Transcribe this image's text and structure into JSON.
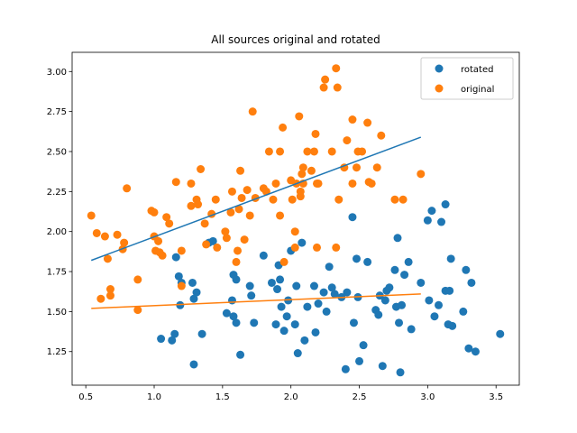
{
  "chart_data": {
    "type": "scatter",
    "title": "All sources original and rotated",
    "xlabel": "",
    "ylabel": "",
    "xlim": [
      0.4,
      3.67
    ],
    "ylim": [
      1.04,
      3.12
    ],
    "xticks": [
      0.5,
      1.0,
      1.5,
      2.0,
      2.5,
      3.0,
      3.5
    ],
    "xtick_labels": [
      "0.5",
      "1.0",
      "1.5",
      "2.0",
      "2.5",
      "3.0",
      "3.5"
    ],
    "yticks": [
      1.25,
      1.5,
      1.75,
      2.0,
      2.25,
      2.5,
      2.75,
      3.0
    ],
    "ytick_labels": [
      "1.25",
      "1.50",
      "1.75",
      "2.00",
      "2.25",
      "2.50",
      "2.75",
      "3.00"
    ],
    "grid": false,
    "legend_position": "top-right",
    "series": [
      {
        "name": "rotated",
        "color": "#1f77b4",
        "points": [
          [
            1.05,
            1.33
          ],
          [
            1.13,
            1.32
          ],
          [
            1.15,
            1.36
          ],
          [
            1.16,
            1.84
          ],
          [
            1.18,
            1.72
          ],
          [
            1.2,
            1.68
          ],
          [
            1.19,
            1.54
          ],
          [
            1.28,
            1.68
          ],
          [
            1.29,
            1.58
          ],
          [
            1.31,
            1.62
          ],
          [
            1.29,
            1.17
          ],
          [
            1.35,
            1.36
          ],
          [
            1.4,
            1.93
          ],
          [
            1.43,
            1.94
          ],
          [
            1.53,
            1.49
          ],
          [
            1.57,
            1.57
          ],
          [
            1.58,
            1.73
          ],
          [
            1.6,
            1.7
          ],
          [
            1.58,
            1.47
          ],
          [
            1.6,
            1.43
          ],
          [
            1.63,
            1.23
          ],
          [
            1.7,
            1.66
          ],
          [
            1.71,
            1.6
          ],
          [
            1.73,
            1.43
          ],
          [
            1.8,
            1.85
          ],
          [
            1.86,
            1.68
          ],
          [
            1.89,
            1.42
          ],
          [
            1.9,
            1.64
          ],
          [
            1.91,
            1.79
          ],
          [
            1.92,
            1.7
          ],
          [
            1.93,
            1.53
          ],
          [
            1.95,
            1.38
          ],
          [
            1.97,
            1.47
          ],
          [
            1.98,
            1.57
          ],
          [
            2.0,
            1.88
          ],
          [
            2.03,
            1.42
          ],
          [
            2.04,
            1.66
          ],
          [
            2.05,
            1.24
          ],
          [
            2.08,
            1.93
          ],
          [
            2.1,
            1.32
          ],
          [
            2.12,
            1.53
          ],
          [
            2.17,
            1.66
          ],
          [
            2.18,
            1.37
          ],
          [
            2.2,
            1.55
          ],
          [
            2.24,
            1.62
          ],
          [
            2.26,
            1.5
          ],
          [
            2.28,
            1.78
          ],
          [
            2.3,
            1.65
          ],
          [
            2.32,
            1.61
          ],
          [
            2.37,
            1.59
          ],
          [
            2.4,
            1.14
          ],
          [
            2.41,
            1.62
          ],
          [
            2.45,
            2.09
          ],
          [
            2.46,
            1.43
          ],
          [
            2.48,
            1.83
          ],
          [
            2.49,
            1.59
          ],
          [
            2.5,
            1.19
          ],
          [
            2.53,
            1.29
          ],
          [
            2.56,
            1.81
          ],
          [
            2.62,
            1.51
          ],
          [
            2.64,
            1.48
          ],
          [
            2.65,
            1.6
          ],
          [
            2.67,
            1.16
          ],
          [
            2.69,
            1.57
          ],
          [
            2.7,
            1.63
          ],
          [
            2.72,
            1.65
          ],
          [
            2.76,
            1.76
          ],
          [
            2.77,
            1.53
          ],
          [
            2.78,
            1.96
          ],
          [
            2.79,
            1.43
          ],
          [
            2.8,
            1.12
          ],
          [
            2.81,
            1.54
          ],
          [
            2.83,
            1.73
          ],
          [
            2.86,
            1.81
          ],
          [
            2.88,
            1.39
          ],
          [
            2.95,
            1.68
          ],
          [
            3.0,
            2.07
          ],
          [
            3.01,
            1.57
          ],
          [
            3.03,
            2.13
          ],
          [
            3.05,
            1.47
          ],
          [
            3.08,
            1.54
          ],
          [
            3.1,
            2.06
          ],
          [
            3.13,
            2.17
          ],
          [
            3.13,
            1.63
          ],
          [
            3.15,
            1.42
          ],
          [
            3.16,
            1.63
          ],
          [
            3.17,
            1.83
          ],
          [
            3.18,
            1.41
          ],
          [
            3.26,
            1.5
          ],
          [
            3.28,
            1.76
          ],
          [
            3.3,
            1.27
          ],
          [
            3.32,
            1.68
          ],
          [
            3.35,
            1.25
          ],
          [
            3.53,
            1.36
          ]
        ],
        "fit_line": [
          [
            0.54,
            1.82
          ],
          [
            2.95,
            2.59
          ]
        ]
      },
      {
        "name": "original",
        "color": "#ff7f0e",
        "points": [
          [
            0.54,
            2.1
          ],
          [
            0.58,
            1.99
          ],
          [
            0.61,
            1.58
          ],
          [
            0.64,
            1.97
          ],
          [
            0.66,
            1.83
          ],
          [
            0.68,
            1.64
          ],
          [
            0.68,
            1.6
          ],
          [
            0.73,
            1.98
          ],
          [
            0.77,
            1.89
          ],
          [
            0.78,
            1.93
          ],
          [
            0.8,
            2.27
          ],
          [
            0.88,
            1.7
          ],
          [
            0.88,
            1.51
          ],
          [
            0.98,
            2.13
          ],
          [
            1.0,
            2.12
          ],
          [
            1.0,
            1.97
          ],
          [
            1.01,
            1.88
          ],
          [
            1.03,
            1.94
          ],
          [
            1.04,
            1.87
          ],
          [
            1.06,
            1.85
          ],
          [
            1.09,
            2.09
          ],
          [
            1.11,
            2.05
          ],
          [
            1.16,
            2.31
          ],
          [
            1.2,
            1.88
          ],
          [
            1.2,
            1.66
          ],
          [
            1.27,
            2.16
          ],
          [
            1.27,
            2.3
          ],
          [
            1.31,
            2.2
          ],
          [
            1.32,
            2.17
          ],
          [
            1.34,
            2.39
          ],
          [
            1.37,
            2.05
          ],
          [
            1.38,
            1.92
          ],
          [
            1.42,
            2.11
          ],
          [
            1.45,
            2.2
          ],
          [
            1.46,
            1.9
          ],
          [
            1.52,
            2.0
          ],
          [
            1.53,
            1.96
          ],
          [
            1.56,
            2.12
          ],
          [
            1.57,
            2.25
          ],
          [
            1.6,
            1.81
          ],
          [
            1.61,
            1.88
          ],
          [
            1.62,
            2.14
          ],
          [
            1.63,
            2.38
          ],
          [
            1.64,
            2.21
          ],
          [
            1.66,
            1.95
          ],
          [
            1.68,
            2.26
          ],
          [
            1.7,
            2.1
          ],
          [
            1.72,
            2.75
          ],
          [
            1.74,
            2.21
          ],
          [
            1.8,
            2.27
          ],
          [
            1.82,
            2.25
          ],
          [
            1.84,
            2.5
          ],
          [
            1.87,
            2.2
          ],
          [
            1.89,
            2.3
          ],
          [
            1.92,
            2.5
          ],
          [
            1.92,
            2.1
          ],
          [
            1.94,
            2.65
          ],
          [
            1.95,
            1.81
          ],
          [
            2.0,
            2.32
          ],
          [
            2.01,
            2.2
          ],
          [
            2.03,
            2.0
          ],
          [
            2.03,
            1.9
          ],
          [
            2.04,
            2.3
          ],
          [
            2.06,
            2.72
          ],
          [
            2.07,
            2.22
          ],
          [
            2.07,
            2.25
          ],
          [
            2.08,
            2.36
          ],
          [
            2.09,
            2.3
          ],
          [
            2.09,
            2.4
          ],
          [
            2.12,
            2.5
          ],
          [
            2.15,
            2.38
          ],
          [
            2.17,
            2.5
          ],
          [
            2.18,
            2.61
          ],
          [
            2.19,
            2.3
          ],
          [
            2.2,
            2.3
          ],
          [
            2.19,
            1.9
          ],
          [
            2.24,
            2.9
          ],
          [
            2.25,
            2.95
          ],
          [
            2.3,
            2.5
          ],
          [
            2.33,
            3.02
          ],
          [
            2.33,
            1.9
          ],
          [
            2.34,
            2.9
          ],
          [
            2.35,
            2.2
          ],
          [
            2.39,
            2.4
          ],
          [
            2.41,
            2.57
          ],
          [
            2.45,
            2.7
          ],
          [
            2.45,
            2.3
          ],
          [
            2.48,
            2.4
          ],
          [
            2.49,
            2.5
          ],
          [
            2.52,
            2.5
          ],
          [
            2.56,
            2.68
          ],
          [
            2.57,
            2.31
          ],
          [
            2.59,
            2.3
          ],
          [
            2.63,
            2.4
          ],
          [
            2.66,
            2.6
          ],
          [
            2.76,
            2.2
          ],
          [
            2.82,
            2.2
          ],
          [
            2.95,
            2.36
          ]
        ],
        "fit_line": [
          [
            0.54,
            1.52
          ],
          [
            2.95,
            1.61
          ]
        ]
      }
    ]
  }
}
